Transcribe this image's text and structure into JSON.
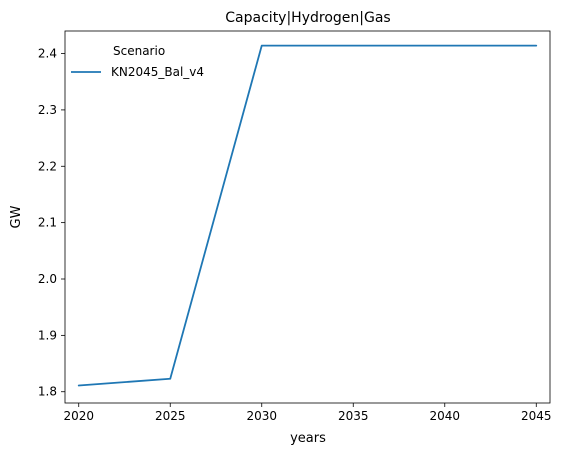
{
  "chart_data": {
    "type": "line",
    "title": "Capacity|Hydrogen|Gas",
    "xlabel": "years",
    "ylabel": "GW",
    "x": [
      2020,
      2025,
      2030,
      2035,
      2040,
      2045
    ],
    "xlim": [
      2019.25,
      2045.75
    ],
    "ylim": [
      1.78,
      2.44
    ],
    "xticks": [
      2020,
      2025,
      2030,
      2035,
      2040,
      2045
    ],
    "yticks": [
      1.8,
      1.9,
      2.0,
      2.1,
      2.2,
      2.3,
      2.4
    ],
    "grid": false,
    "legend": {
      "title": "Scenario",
      "placement": "top-left"
    },
    "series": [
      {
        "name": "KN2045_Bal_v4",
        "color": "#1f77b4",
        "values": [
          1.811,
          1.823,
          2.414,
          2.414,
          2.414,
          2.414
        ]
      }
    ]
  }
}
